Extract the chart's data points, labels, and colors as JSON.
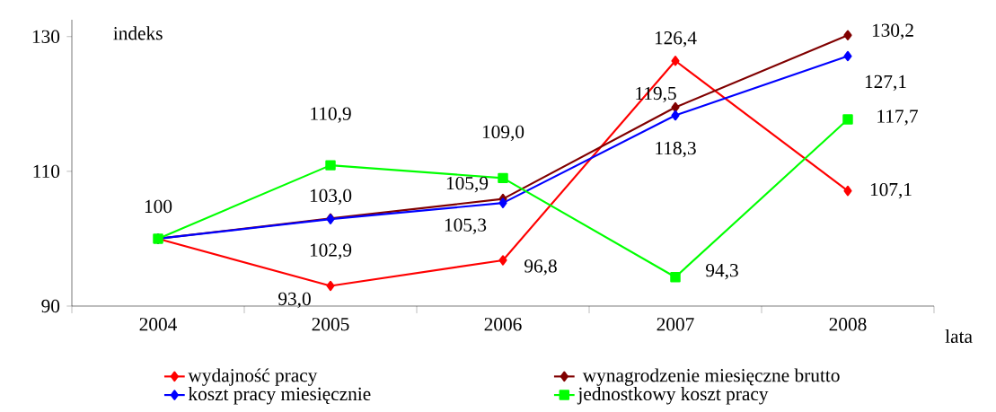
{
  "chart_data": {
    "type": "line",
    "xlabel": "lata",
    "ylabel": "indeks",
    "categories": [
      "2004",
      "2005",
      "2006",
      "2007",
      "2008"
    ],
    "ylim": [
      90,
      132.5
    ],
    "yticks": [
      90,
      110,
      130
    ],
    "grid": false,
    "legend": "bottom",
    "series": [
      {
        "name": "wydajność pracy",
        "color": "#ff0000",
        "marker": "diamond",
        "values": [
          100,
          93.0,
          96.8,
          126.4,
          107.1
        ],
        "value_labels": [
          null,
          "93,0",
          "96,8",
          "126,4",
          "107,1"
        ]
      },
      {
        "name": " wynagrodzenie miesięczne brutto",
        "color": "#800000",
        "marker": "diamond",
        "values": [
          100,
          103.0,
          105.9,
          119.5,
          130.2
        ],
        "value_labels": [
          null,
          "103,0",
          "105,9",
          "119,5",
          "130,2"
        ]
      },
      {
        "name": "koszt pracy miesięcznie",
        "color": "#0000ff",
        "marker": "diamond",
        "values": [
          100,
          102.9,
          105.3,
          118.3,
          127.1
        ],
        "value_labels": [
          null,
          "102,9",
          "105,3",
          "118,3",
          "127,1"
        ]
      },
      {
        "name": "jednostkowy koszt pracy",
        "color": "#00ff00",
        "marker": "square",
        "values": [
          100,
          110.9,
          109.0,
          94.3,
          117.7
        ],
        "value_labels": [
          "100",
          "110,9",
          "109,0",
          "94,3",
          "117,7"
        ]
      }
    ]
  }
}
